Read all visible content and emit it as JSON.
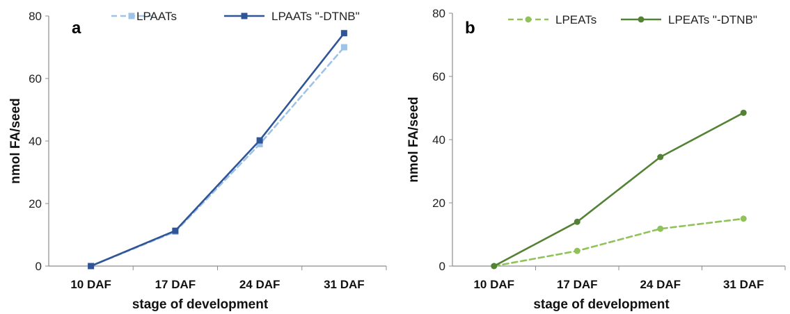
{
  "chart_data": [
    {
      "type": "line",
      "panel_label": "a",
      "categories": [
        "10 DAF",
        "17 DAF",
        "24 DAF",
        "31 DAF"
      ],
      "series": [
        {
          "name": "LPAATs",
          "values": [
            0,
            11,
            39,
            70
          ],
          "color": "#9dc3e6",
          "style": "dashed",
          "marker": "square"
        },
        {
          "name": "LPAATs \"-DTNB\"",
          "values": [
            0,
            11.3,
            40.2,
            74.5
          ],
          "color": "#2f5597",
          "style": "solid",
          "marker": "square"
        }
      ],
      "xlabel": "stage of development",
      "ylabel": "nmol FA/seed",
      "ylim": [
        0,
        80
      ],
      "yticks": [
        "0",
        "20",
        "40",
        "60",
        "80"
      ],
      "grid": false,
      "legend_position": "top"
    },
    {
      "type": "line",
      "panel_label": "b",
      "categories": [
        "10 DAF",
        "17 DAF",
        "24 DAF",
        "31 DAF"
      ],
      "series": [
        {
          "name": "LPEATs",
          "values": [
            0,
            4.8,
            11.8,
            15
          ],
          "color": "#8fc35a",
          "style": "dashed",
          "marker": "circle"
        },
        {
          "name": "LPEATs \"-DTNB\"",
          "values": [
            0,
            14,
            34.5,
            48.5
          ],
          "color": "#548235",
          "style": "solid",
          "marker": "circle"
        }
      ],
      "xlabel": "stage of development",
      "ylabel": "nmol FA/seed",
      "ylim": [
        0,
        80
      ],
      "yticks": [
        "0",
        "20",
        "40",
        "60",
        "80"
      ],
      "grid": false,
      "legend_position": "top"
    }
  ]
}
